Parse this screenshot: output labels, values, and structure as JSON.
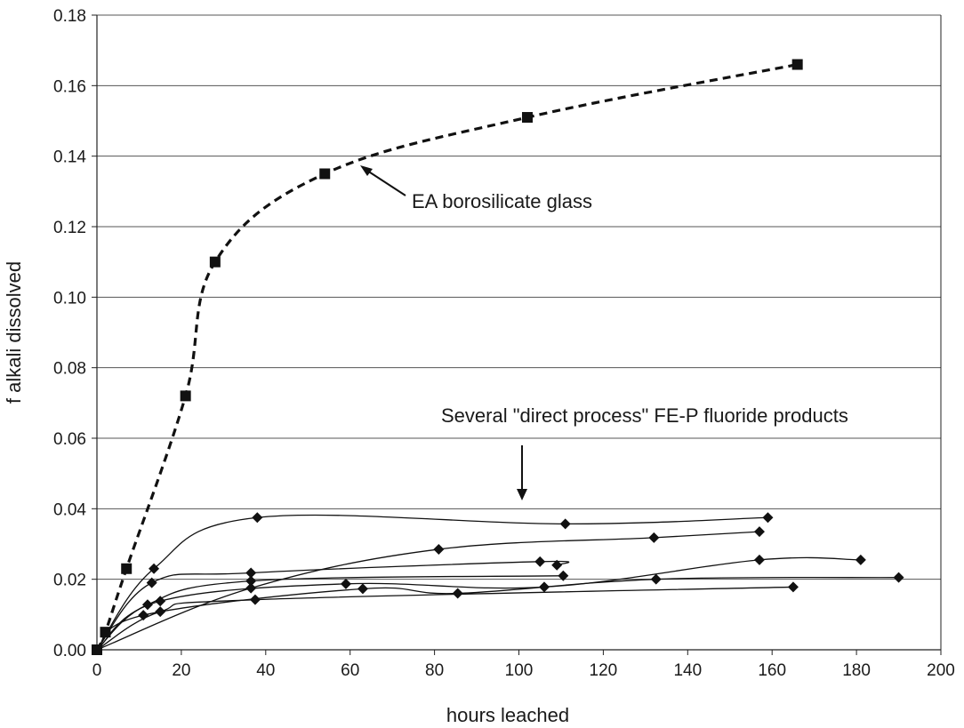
{
  "chart_data": {
    "type": "line",
    "xlabel": "hours leached",
    "ylabel": "f alkali dissolved",
    "xlim": [
      0,
      200
    ],
    "ylim": [
      0,
      0.18
    ],
    "x_ticks": [
      0,
      20,
      40,
      60,
      80,
      100,
      120,
      140,
      160,
      180,
      200
    ],
    "x_tick_labels": [
      "0",
      "20",
      "40",
      "60",
      "80",
      "100",
      "120",
      "140",
      "160",
      "180",
      "200"
    ],
    "y_ticks": [
      0,
      0.02,
      0.04,
      0.06,
      0.08,
      0.1,
      0.12,
      0.14,
      0.16,
      0.18
    ],
    "y_tick_labels": [
      "0.00",
      "0.02",
      "0.04",
      "0.06",
      "0.08",
      "0.10",
      "0.12",
      "0.14",
      "0.16",
      "0.18"
    ],
    "grid": "horizontal",
    "series": [
      {
        "line": "dashed",
        "marker": "square",
        "x": [
          0,
          2,
          7,
          21,
          28,
          54,
          102,
          166
        ],
        "y": [
          0,
          0.005,
          0.023,
          0.072,
          0.11,
          0.135,
          0.151,
          0.166
        ]
      },
      {
        "line": "solid",
        "marker": "diamond",
        "x": [
          0,
          13.5,
          38,
          111,
          159
        ],
        "y": [
          0,
          0.023,
          0.0375,
          0.0357,
          0.0375
        ]
      },
      {
        "line": "solid",
        "marker": "diamond",
        "x": [
          0,
          36.5,
          81,
          132,
          157
        ],
        "y": [
          0,
          0.0175,
          0.0285,
          0.0318,
          0.0335
        ]
      },
      {
        "line": "solid",
        "marker": "diamond",
        "x": [
          0,
          13,
          36.5,
          105,
          109
        ],
        "y": [
          0,
          0.019,
          0.0218,
          0.025,
          0.024
        ]
      },
      {
        "line": "solid",
        "marker": "diamond",
        "x": [
          0,
          12,
          36.5,
          110.5
        ],
        "y": [
          0,
          0.0128,
          0.0195,
          0.021
        ]
      },
      {
        "line": "solid",
        "marker": "diamond",
        "x": [
          0,
          15,
          59,
          106,
          157,
          181
        ],
        "y": [
          0,
          0.0138,
          0.0187,
          0.0178,
          0.0255,
          0.0255
        ]
      },
      {
        "line": "solid",
        "marker": "diamond",
        "x": [
          0,
          11,
          63,
          85.5,
          132.5,
          190
        ],
        "y": [
          0,
          0.0098,
          0.0173,
          0.016,
          0.02,
          0.0205
        ]
      },
      {
        "line": "solid",
        "marker": "diamond",
        "x": [
          0,
          15,
          37.5,
          165
        ],
        "y": [
          0,
          0.0108,
          0.0142,
          0.0178
        ]
      }
    ],
    "annotations": [
      {
        "text": "EA borosilicate glass",
        "arrow_to": [
          63,
          0.1395
        ]
      },
      {
        "text": "Several \"direct process\" FE-P fluoride products",
        "arrow_to": [
          101,
          0.0405
        ]
      }
    ]
  }
}
